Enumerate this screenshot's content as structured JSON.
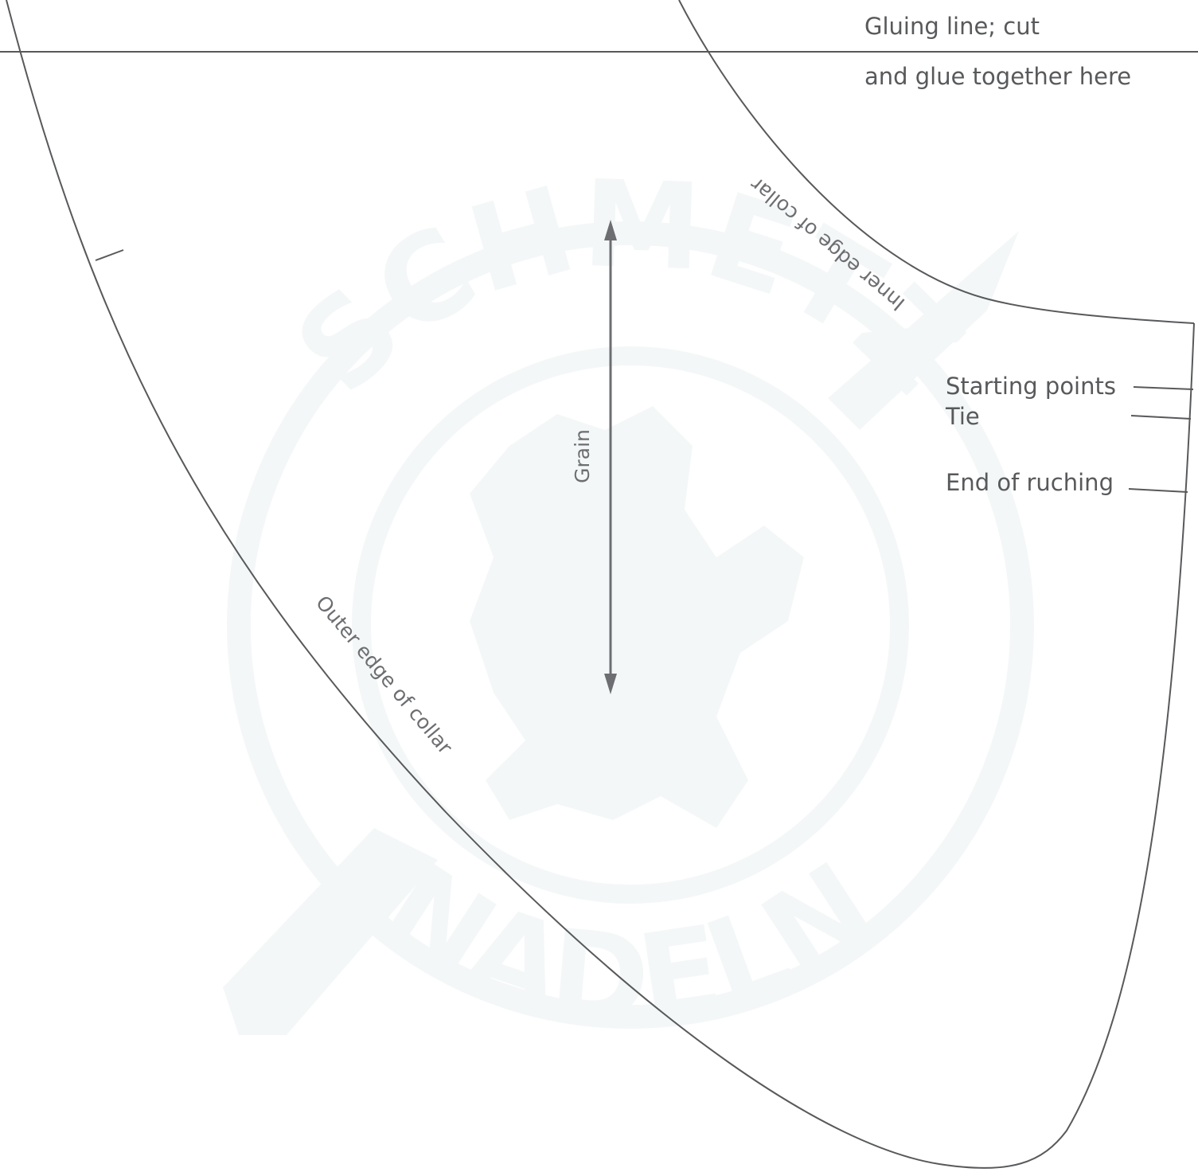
{
  "pattern": {
    "gluing_line": [
      "Gluing line; cut",
      "and glue together here"
    ],
    "inner_edge_label": "Inner edge of collar",
    "outer_edge_label": "Outer edge of collar",
    "grain_label": "Grain",
    "markers": {
      "starting_points": "Starting points",
      "tie": "Tie",
      "end_of_ruching": "End of ruching"
    }
  },
  "watermark": {
    "text_top": "SCHMETZ",
    "text_bottom": "NADELN"
  },
  "colors": {
    "line": "#58595b",
    "text": "#58595b",
    "watermark": "#f4f7f8"
  }
}
